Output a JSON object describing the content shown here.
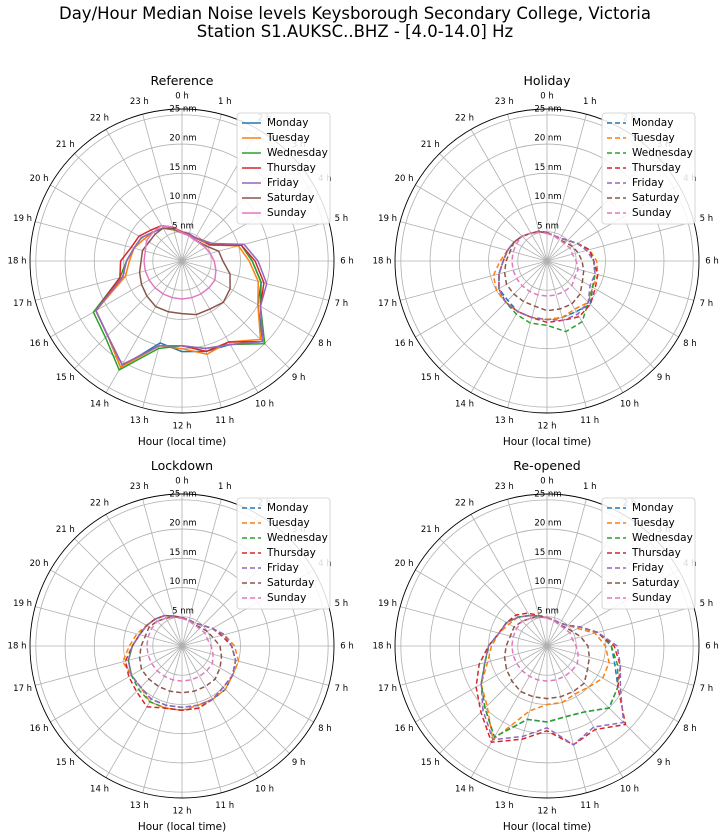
{
  "title_line1": "Day/Hour Median Noise levels Keysborough Secondary College, Victoria",
  "title_line2": "Station S1.AUKSC..BHZ - [4.0-14.0] Hz",
  "chart_data": [
    {
      "type": "polar-line",
      "title": "Reference",
      "xlabel": "Hour (local time)",
      "line_style": "solid",
      "rlim": [
        0,
        26
      ],
      "rticks": [
        5,
        10,
        15,
        20,
        25
      ],
      "rtick_labels": [
        "5 nm",
        "10 nm",
        "15 nm",
        "20 nm",
        "25 nm"
      ],
      "theta_labels": [
        "0 h",
        "1 h",
        "2 h",
        "3 h",
        "4 h",
        "5 h",
        "6 h",
        "7 h",
        "8 h",
        "9 h",
        "10 h",
        "11 h",
        "12 h",
        "13 h",
        "14 h",
        "15 h",
        "16 h",
        "17 h",
        "18 h",
        "19 h",
        "20 h",
        "21 h",
        "22 h",
        "23 h"
      ],
      "legend": "upper-right",
      "series": [
        {
          "name": "Monday",
          "color": "#1f77b4",
          "values": [
            4.8,
            4.7,
            4.5,
            4.9,
            5.5,
            10.5,
            12,
            14,
            15,
            19.5,
            16.5,
            16,
            15.5,
            14.5,
            21,
            18,
            17,
            10.5,
            9.5,
            8.5,
            8,
            7,
            6.5,
            5.5
          ]
        },
        {
          "name": "Tuesday",
          "color": "#ff7f0e",
          "values": [
            4.8,
            4.6,
            4.5,
            4.8,
            5.5,
            10,
            11.5,
            13.5,
            15,
            19,
            16,
            16.5,
            15,
            15,
            21,
            18,
            17,
            10,
            9,
            8.5,
            7.5,
            7,
            6.5,
            5.5
          ]
        },
        {
          "name": "Wednesday",
          "color": "#2ca02c",
          "values": [
            4.9,
            4.7,
            4.5,
            5.0,
            6,
            10.5,
            12,
            14,
            15.5,
            20,
            16.5,
            15.5,
            14.5,
            15.5,
            21.5,
            18.5,
            17.5,
            11,
            9.5,
            8.5,
            8,
            7,
            6.5,
            5.6
          ]
        },
        {
          "name": "Thursday",
          "color": "#d62728",
          "values": [
            5.0,
            4.8,
            4.6,
            5.0,
            5.5,
            10.5,
            12.5,
            14.5,
            15.5,
            19.5,
            16,
            16,
            14.5,
            15,
            20.5,
            18,
            17,
            11,
            10.5,
            9,
            8.5,
            7.5,
            7,
            6.0
          ]
        },
        {
          "name": "Friday",
          "color": "#9467bd",
          "values": [
            4.9,
            4.7,
            4.5,
            4.9,
            6,
            11,
            13,
            15,
            15.5,
            19.5,
            16.5,
            15.5,
            14.5,
            15,
            20.5,
            18,
            17,
            10.5,
            9.5,
            8.5,
            8,
            7,
            6.5,
            5.7
          ]
        },
        {
          "name": "Saturday",
          "color": "#8c564b",
          "values": [
            4.8,
            4.5,
            4.2,
            4.4,
            5,
            6.5,
            7,
            8.5,
            9.5,
            10,
            9.5,
            9.5,
            9,
            9,
            9,
            8.5,
            8,
            7.5,
            7,
            7,
            6.5,
            6.5,
            6.5,
            5.8
          ]
        },
        {
          "name": "Sunday",
          "color": "#e377c2",
          "values": [
            4.8,
            4.5,
            4.2,
            4.3,
            4.6,
            5,
            5.5,
            6,
            6.5,
            6.5,
            6.5,
            6.5,
            6.5,
            6.5,
            6.5,
            6.5,
            6.5,
            6.5,
            6.5,
            6.5,
            7,
            7,
            7,
            6.0
          ]
        }
      ]
    },
    {
      "type": "polar-line",
      "title": "Holiday",
      "xlabel": "Hour (local time)",
      "line_style": "dashed",
      "rlim": [
        0,
        26
      ],
      "rticks": [
        5,
        10,
        15,
        20,
        25
      ],
      "rtick_labels": [
        "5 nm",
        "10 nm",
        "15 nm",
        "20 nm",
        "25 nm"
      ],
      "theta_labels": [
        "0 h",
        "1 h",
        "2 h",
        "3 h",
        "4 h",
        "5 h",
        "6 h",
        "7 h",
        "8 h",
        "9 h",
        "10 h",
        "11 h",
        "12 h",
        "13 h",
        "14 h",
        "15 h",
        "16 h",
        "17 h",
        "18 h",
        "19 h",
        "20 h",
        "21 h",
        "22 h",
        "23 h"
      ],
      "legend": "upper-right",
      "series": [
        {
          "name": "Monday",
          "color": "#1f77b4",
          "values": [
            4.8,
            4.5,
            4.5,
            5,
            6,
            7.5,
            8,
            8.5,
            9,
            10.5,
            10,
            10,
            10,
            10,
            10,
            9.5,
            9.5,
            8.5,
            7.5,
            7,
            6.5,
            6,
            5.5,
            5.2
          ]
        },
        {
          "name": "Tuesday",
          "color": "#ff7f0e",
          "values": [
            4.8,
            4.5,
            4.5,
            5,
            6,
            7.5,
            8.5,
            9,
            9,
            10,
            9.5,
            10,
            10,
            10,
            10,
            10,
            10,
            9.5,
            8,
            7,
            6.5,
            6,
            5.5,
            5.2
          ]
        },
        {
          "name": "Wednesday",
          "color": "#2ca02c",
          "values": [
            4.8,
            4.5,
            4.5,
            5,
            6,
            7.5,
            8,
            8.5,
            9,
            10,
            12,
            12.5,
            11,
            11,
            10.5,
            10,
            9.5,
            8.5,
            7.5,
            7,
            6.5,
            6,
            5.5,
            5.2
          ]
        },
        {
          "name": "Thursday",
          "color": "#d62728",
          "values": [
            4.9,
            4.5,
            4.5,
            5,
            6,
            7.5,
            8,
            9,
            9.5,
            10.5,
            11,
            10.5,
            10.5,
            10,
            10,
            10,
            9.5,
            8.5,
            7.5,
            7,
            6.5,
            6,
            5.5,
            5.3
          ]
        },
        {
          "name": "Friday",
          "color": "#9467bd",
          "values": [
            4.8,
            4.5,
            4.5,
            5,
            6,
            7,
            8,
            8.5,
            8.5,
            10,
            10.5,
            10.5,
            10,
            10,
            10,
            10,
            9.5,
            8.5,
            7.5,
            7,
            6.5,
            6,
            5.5,
            5.2
          ]
        },
        {
          "name": "Saturday",
          "color": "#8c564b",
          "values": [
            4.8,
            4.5,
            4.2,
            4.5,
            5,
            5.5,
            6,
            6.5,
            7,
            8,
            8.5,
            8.5,
            8.5,
            8,
            8,
            8,
            8,
            7.5,
            7,
            6.5,
            6.5,
            6,
            5.5,
            5.2
          ]
        },
        {
          "name": "Sunday",
          "color": "#e377c2",
          "values": [
            4.7,
            4.5,
            4.2,
            4.2,
            4.5,
            4.5,
            5,
            5.5,
            5.5,
            6,
            6,
            6,
            6,
            6,
            6,
            6,
            6,
            6,
            6,
            6,
            6,
            6,
            5.5,
            5.1
          ]
        }
      ]
    },
    {
      "type": "polar-line",
      "title": "Lockdown",
      "xlabel": "Hour (local time)",
      "line_style": "dashed",
      "rlim": [
        0,
        26
      ],
      "rticks": [
        5,
        10,
        15,
        20,
        25
      ],
      "rtick_labels": [
        "5 nm",
        "10 nm",
        "15 nm",
        "20 nm",
        "25 nm"
      ],
      "theta_labels": [
        "0 h",
        "1 h",
        "2 h",
        "3 h",
        "4 h",
        "5 h",
        "6 h",
        "7 h",
        "8 h",
        "9 h",
        "10 h",
        "11 h",
        "12 h",
        "13 h",
        "14 h",
        "15 h",
        "16 h",
        "17 h",
        "18 h",
        "19 h",
        "20 h",
        "21 h",
        "22 h",
        "23 h"
      ],
      "legend": "upper-right",
      "series": [
        {
          "name": "Monday",
          "color": "#1f77b4",
          "values": [
            4.8,
            4.6,
            4.5,
            5,
            6,
            7.5,
            8.5,
            9.5,
            10,
            10.5,
            10.5,
            10.5,
            10.5,
            10.5,
            10.5,
            10,
            10,
            9.5,
            8.5,
            7.5,
            7,
            6.5,
            6,
            5.3
          ]
        },
        {
          "name": "Tuesday",
          "color": "#ff7f0e",
          "values": [
            4.8,
            4.6,
            4.5,
            5,
            6,
            7.5,
            9,
            10,
            10,
            10.5,
            10.5,
            10.5,
            11,
            11,
            11,
            10,
            10,
            10.5,
            9,
            8,
            7,
            6.5,
            6,
            5.3
          ]
        },
        {
          "name": "Wednesday",
          "color": "#2ca02c",
          "values": [
            4.8,
            4.6,
            4.5,
            5,
            6,
            7.5,
            8.5,
            9.5,
            10,
            10,
            10.5,
            11,
            11,
            11,
            11,
            10.5,
            10,
            9.5,
            8.5,
            7.5,
            7,
            6.5,
            6,
            5.3
          ]
        },
        {
          "name": "Thursday",
          "color": "#d62728",
          "values": [
            4.9,
            4.6,
            4.5,
            5,
            6,
            7,
            8.5,
            9.5,
            10,
            10,
            10.5,
            11,
            11,
            11,
            12,
            11,
            10.5,
            10,
            8.5,
            7.5,
            7,
            6.5,
            6,
            5.3
          ]
        },
        {
          "name": "Friday",
          "color": "#9467bd",
          "values": [
            4.8,
            4.6,
            4.5,
            5,
            6,
            7.5,
            8.5,
            9.5,
            10,
            10,
            10.5,
            10.5,
            10.5,
            10.5,
            10.5,
            10,
            10,
            9.5,
            8.5,
            7.5,
            7,
            6.5,
            6,
            5.3
          ]
        },
        {
          "name": "Saturday",
          "color": "#8c564b",
          "values": [
            4.8,
            4.5,
            4.2,
            4.5,
            5,
            5.5,
            6.5,
            7,
            7.5,
            8,
            8,
            8,
            8,
            8,
            8,
            8,
            8,
            7.5,
            7,
            6.5,
            6.5,
            6,
            5.5,
            5.2
          ]
        },
        {
          "name": "Sunday",
          "color": "#e377c2",
          "values": [
            4.7,
            4.5,
            4.2,
            4.2,
            4.5,
            4.5,
            5,
            5.5,
            6,
            6,
            6,
            6,
            6,
            6,
            6,
            6,
            6,
            6,
            6,
            6,
            6,
            6,
            5.5,
            5.1
          ]
        }
      ]
    },
    {
      "type": "polar-line",
      "title": "Re-opened",
      "xlabel": "Hour (local time)",
      "line_style": "dashed",
      "rlim": [
        0,
        26
      ],
      "rticks": [
        5,
        10,
        15,
        20,
        25
      ],
      "rtick_labels": [
        "5 nm",
        "10 nm",
        "15 nm",
        "20 nm",
        "25 nm"
      ],
      "theta_labels": [
        "0 h",
        "1 h",
        "2 h",
        "3 h",
        "4 h",
        "5 h",
        "6 h",
        "7 h",
        "8 h",
        "9 h",
        "10 h",
        "11 h",
        "12 h",
        "13 h",
        "14 h",
        "15 h",
        "16 h",
        "17 h",
        "18 h",
        "19 h",
        "20 h",
        "21 h",
        "22 h",
        "23 h"
      ],
      "legend": "upper-right",
      "series": [
        {
          "name": "Monday",
          "color": "#1f77b4",
          "values": [
            4.8,
            4.6,
            4.5,
            5,
            6.5,
            9,
            11,
            12,
            14,
            15,
            13,
            12.5,
            13,
            13,
            18,
            15,
            13,
            11,
            10,
            8.5,
            8,
            7,
            6,
            5.3
          ]
        },
        {
          "name": "Tuesday",
          "color": "#ff7f0e",
          "values": [
            4.8,
            4.6,
            4.5,
            5,
            6,
            8.5,
            10,
            11,
            11,
            10,
            9.5,
            10,
            10,
            11.5,
            18.5,
            14.5,
            13,
            10.5,
            9.5,
            8.5,
            7.5,
            7,
            6,
            5.3
          ]
        },
        {
          "name": "Wednesday",
          "color": "#2ca02c",
          "values": [
            4.8,
            4.6,
            4.5,
            5,
            6.5,
            9,
            11,
            12.5,
            14,
            15,
            13,
            12.5,
            13,
            13,
            18,
            15,
            13,
            11,
            10,
            8.5,
            8,
            7,
            6,
            5.3
          ]
        },
        {
          "name": "Thursday",
          "color": "#d62728",
          "values": [
            4.9,
            4.6,
            4.5,
            5,
            6.5,
            9,
            11.5,
            13,
            14,
            19,
            16.5,
            17.5,
            14.5,
            16.5,
            19,
            16,
            14,
            12,
            10,
            8.5,
            8,
            7.5,
            6.5,
            5.4
          ]
        },
        {
          "name": "Friday",
          "color": "#9467bd",
          "values": [
            4.8,
            4.6,
            4.5,
            5,
            6.5,
            9,
            12,
            13,
            14.5,
            18.5,
            16,
            17.5,
            14,
            16,
            18.5,
            15.5,
            13,
            11,
            10,
            8.5,
            8,
            7,
            6,
            5.3
          ]
        },
        {
          "name": "Saturday",
          "color": "#8c564b",
          "values": [
            4.8,
            4.5,
            4.2,
            4.5,
            5,
            6,
            7,
            7.5,
            8,
            9,
            9,
            9,
            9,
            9,
            9,
            8.5,
            8,
            7.5,
            7,
            6.5,
            6.5,
            6,
            5.5,
            5.2
          ]
        },
        {
          "name": "Sunday",
          "color": "#e377c2",
          "values": [
            4.8,
            4.5,
            4.2,
            4.2,
            4.5,
            4.5,
            5,
            5.5,
            6,
            6,
            6,
            6,
            6,
            6,
            6,
            6,
            6,
            6,
            6,
            6,
            6,
            6,
            5.5,
            5.1
          ]
        }
      ]
    }
  ]
}
